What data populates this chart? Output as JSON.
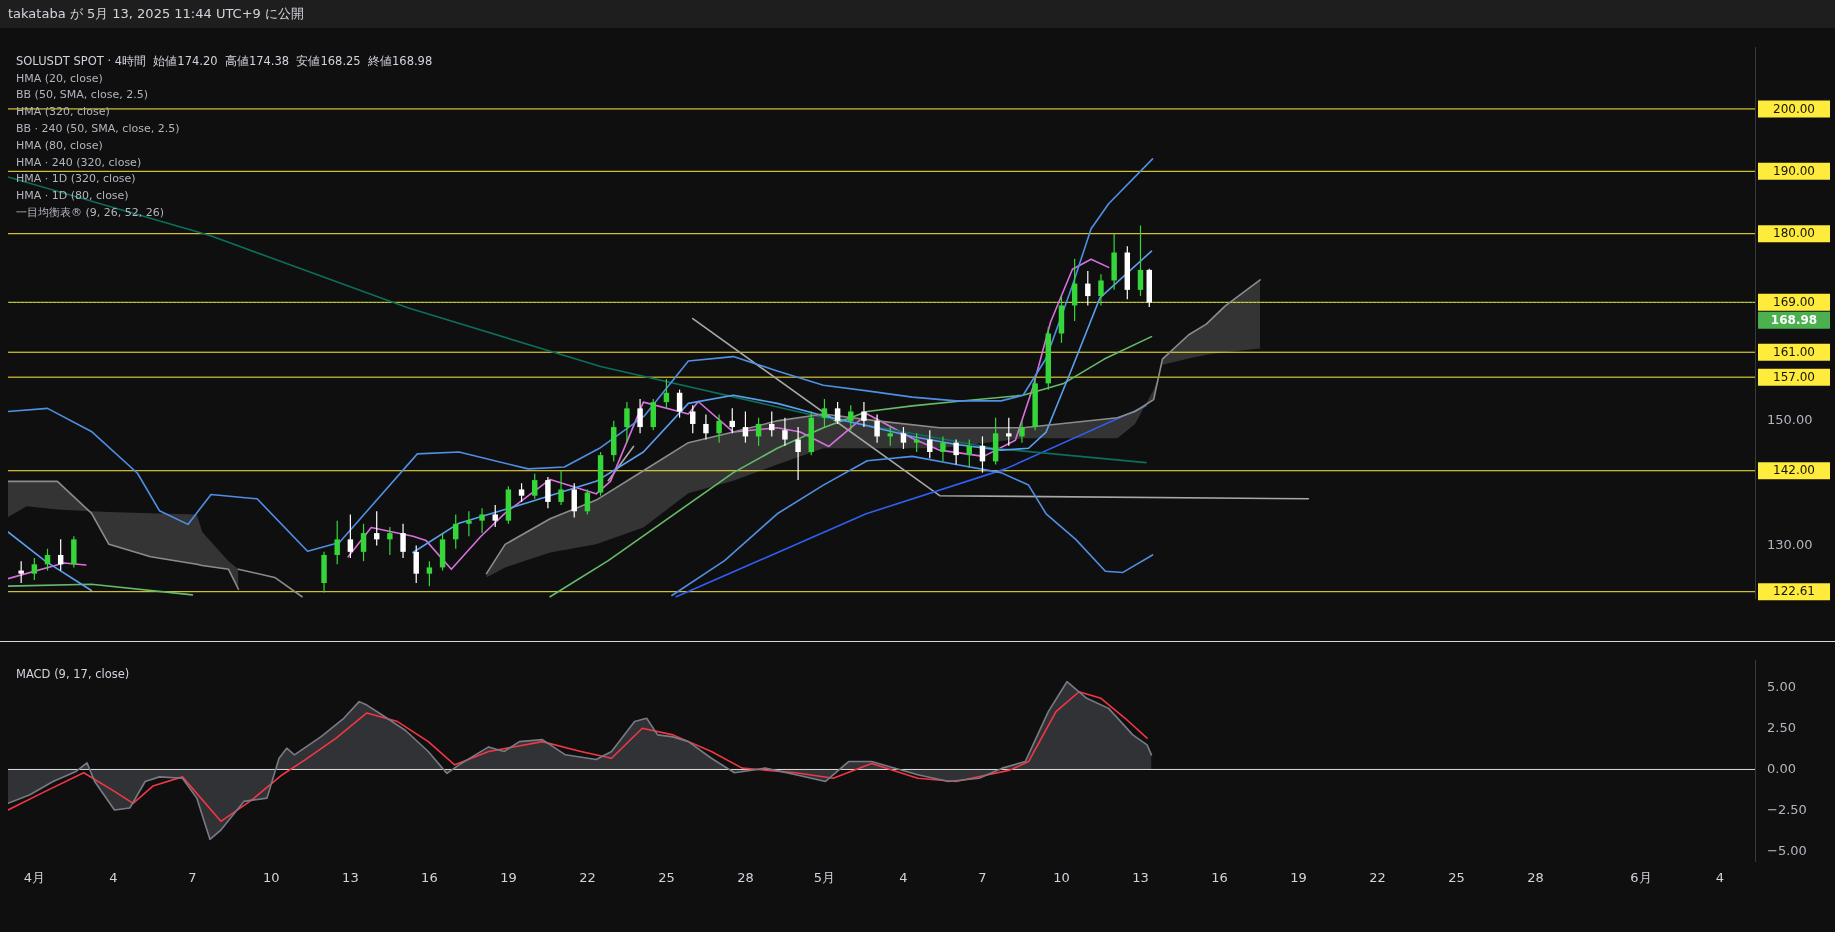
{
  "chart_data": [
    {
      "type": "candlestick",
      "title": "takataba が 5月 13, 2025 11:44 UTC+9 に公開",
      "subtitle": "SOLUSDT SPOT · 4時間  始値174.20  高値174.38  安値168.25  終値168.98",
      "annotations": [
        "HMA (20, close)",
        "BB (50, SMA, close, 2.5)",
        "HMA (320, close)",
        "BB · 240 (50, SMA, close, 2.5)",
        "HMA (80, close)",
        "HMA · 240 (320, close)",
        "HMA · 1D (320, close)",
        "HMA · 1D (80, close)",
        "一目均衡表® (9, 26, 52, 26)"
      ],
      "x": [
        "2025-03-31T12:00",
        "2025-04-01T00:00",
        "2025-04-01T12:00",
        "2025-04-02T00:00",
        "2025-04-02T12:00",
        "2025-04-12T00:00",
        "2025-04-12T12:00",
        "2025-04-13T00:00",
        "2025-04-13T12:00",
        "2025-04-14T00:00",
        "2025-04-14T12:00",
        "2025-04-15T00:00",
        "2025-04-15T12:00",
        "2025-04-16T00:00",
        "2025-04-16T12:00",
        "2025-04-17T00:00",
        "2025-04-17T12:00",
        "2025-04-18T00:00",
        "2025-04-18T12:00",
        "2025-04-19T00:00",
        "2025-04-19T12:00",
        "2025-04-20T00:00",
        "2025-04-20T12:00",
        "2025-04-21T00:00",
        "2025-04-21T12:00",
        "2025-04-22T00:00",
        "2025-04-22T12:00",
        "2025-04-23T00:00",
        "2025-04-23T12:00",
        "2025-04-24T00:00",
        "2025-04-24T12:00",
        "2025-04-25T00:00",
        "2025-04-25T12:00",
        "2025-04-26T00:00",
        "2025-04-26T12:00",
        "2025-04-27T00:00",
        "2025-04-27T12:00",
        "2025-04-28T00:00",
        "2025-04-28T12:00",
        "2025-04-29T00:00",
        "2025-04-29T12:00",
        "2025-04-30T00:00",
        "2025-04-30T12:00",
        "2025-05-01T00:00",
        "2025-05-01T12:00",
        "2025-05-02T00:00",
        "2025-05-02T12:00",
        "2025-05-03T00:00",
        "2025-05-03T12:00",
        "2025-05-04T00:00",
        "2025-05-04T12:00",
        "2025-05-05T00:00",
        "2025-05-05T12:00",
        "2025-05-06T00:00",
        "2025-05-06T12:00",
        "2025-05-07T00:00",
        "2025-05-07T12:00",
        "2025-05-08T00:00",
        "2025-05-08T12:00",
        "2025-05-09T00:00",
        "2025-05-09T12:00",
        "2025-05-10T00:00",
        "2025-05-10T12:00",
        "2025-05-11T00:00",
        "2025-05-11T12:00",
        "2025-05-12T00:00",
        "2025-05-12T12:00",
        "2025-05-13T00:00",
        "2025-05-13T08:00"
      ],
      "ohlc": [
        [
          126,
          127.5,
          124,
          125.5
        ],
        [
          125.5,
          128,
          124.5,
          127
        ],
        [
          127,
          129.5,
          126,
          128.5
        ],
        [
          128.5,
          131,
          126,
          127
        ],
        [
          127,
          131.5,
          126.5,
          131
        ],
        [
          124,
          129,
          122.5,
          128.5
        ],
        [
          128.5,
          134,
          127,
          131
        ],
        [
          131,
          135,
          128,
          129
        ],
        [
          129,
          133.5,
          127.5,
          132
        ],
        [
          132,
          135.5,
          130,
          131
        ],
        [
          131,
          133,
          128.5,
          132
        ],
        [
          132,
          133.5,
          128,
          129
        ],
        [
          129,
          130,
          124,
          125.5
        ],
        [
          125.5,
          127.5,
          123.5,
          126.5
        ],
        [
          126.5,
          132,
          126,
          131
        ],
        [
          131,
          135,
          129.5,
          133.5
        ],
        [
          133.5,
          135.5,
          131.5,
          134
        ],
        [
          134,
          136,
          132,
          135
        ],
        [
          135,
          136.5,
          133,
          134
        ],
        [
          134,
          139.5,
          133.5,
          139
        ],
        [
          139,
          140,
          137,
          138
        ],
        [
          138,
          141.5,
          137.5,
          140.5
        ],
        [
          140.5,
          141,
          136,
          137
        ],
        [
          137,
          142,
          136.5,
          139
        ],
        [
          139,
          140,
          134.5,
          135.5
        ],
        [
          135.5,
          139,
          135,
          138.5
        ],
        [
          138.5,
          145,
          138,
          144.5
        ],
        [
          144.5,
          150,
          143.5,
          149
        ],
        [
          149,
          153,
          146.5,
          152
        ],
        [
          152,
          153.5,
          148,
          149
        ],
        [
          149,
          153.5,
          148.5,
          153
        ],
        [
          153,
          156.7,
          152,
          154.5
        ],
        [
          154.5,
          155,
          150.5,
          151.5
        ],
        [
          151.5,
          152.5,
          148,
          149.5
        ],
        [
          149.5,
          151,
          147,
          148
        ],
        [
          148,
          151,
          146.5,
          150
        ],
        [
          150,
          152,
          148,
          149
        ],
        [
          149,
          151.5,
          146.5,
          147.5
        ],
        [
          147.5,
          150.5,
          146,
          149.5
        ],
        [
          149.5,
          151.5,
          147.5,
          148.5
        ],
        [
          148.5,
          150.5,
          146,
          147
        ],
        [
          147,
          149,
          140.5,
          145
        ],
        [
          145,
          151.5,
          144.5,
          150.5
        ],
        [
          150.5,
          153.5,
          149,
          152
        ],
        [
          152,
          153,
          149.5,
          150
        ],
        [
          150,
          152.5,
          148.5,
          151.5
        ],
        [
          151.5,
          153,
          149,
          150
        ],
        [
          150,
          151,
          146.5,
          147.5
        ],
        [
          147.5,
          149,
          146,
          148
        ],
        [
          148,
          149,
          145.5,
          146.5
        ],
        [
          146.5,
          148,
          145,
          147
        ],
        [
          147,
          148.5,
          144,
          145
        ],
        [
          145,
          147.5,
          143.5,
          146.5
        ],
        [
          146.5,
          147,
          143,
          144.5
        ],
        [
          144.5,
          147,
          142.5,
          146
        ],
        [
          146,
          147.5,
          141.7,
          143.5
        ],
        [
          143.5,
          150.5,
          143,
          148
        ],
        [
          148,
          150.5,
          146,
          147.5
        ],
        [
          147.5,
          150,
          146.5,
          149
        ],
        [
          149,
          157,
          148.5,
          156
        ],
        [
          156,
          165,
          155,
          164
        ],
        [
          164,
          170,
          162.5,
          168.5
        ],
        [
          168.5,
          176,
          166,
          172
        ],
        [
          172,
          174,
          168.5,
          170
        ],
        [
          170,
          173.5,
          168.5,
          172.5
        ],
        [
          172.5,
          180,
          171,
          177
        ],
        [
          177,
          178,
          169.5,
          171
        ],
        [
          171,
          181.3,
          170,
          174.2
        ],
        [
          174.2,
          174.38,
          168.25,
          168.98
        ]
      ],
      "colors": [
        "#ffffff",
        "#36d63a",
        "#36d63a",
        "#ffffff",
        "#36d63a",
        "#36d63a",
        "#36d63a",
        "#ffffff",
        "#36d63a",
        "#ffffff",
        "#36d63a",
        "#ffffff",
        "#ffffff",
        "#36d63a",
        "#36d63a",
        "#36d63a",
        "#36d63a",
        "#36d63a",
        "#ffffff",
        "#36d63a",
        "#ffffff",
        "#36d63a",
        "#ffffff",
        "#36d63a",
        "#ffffff",
        "#36d63a",
        "#36d63a",
        "#36d63a",
        "#36d63a",
        "#ffffff",
        "#36d63a",
        "#36d63a",
        "#ffffff",
        "#ffffff",
        "#ffffff",
        "#36d63a",
        "#ffffff",
        "#ffffff",
        "#36d63a",
        "#ffffff",
        "#ffffff",
        "#ffffff",
        "#36d63a",
        "#36d63a",
        "#ffffff",
        "#36d63a",
        "#ffffff",
        "#ffffff",
        "#36d63a",
        "#ffffff",
        "#36d63a",
        "#ffffff",
        "#36d63a",
        "#ffffff",
        "#36d63a",
        "#ffffff",
        "#36d63a",
        "#ffffff",
        "#36d63a",
        "#36d63a",
        "#36d63a",
        "#36d63a",
        "#36d63a",
        "#ffffff",
        "#36d63a",
        "#36d63a",
        "#ffffff",
        "#36d63a",
        "#ffffff"
      ],
      "series": [
        {
          "type": "line",
          "color": "#8c8c8c",
          "x": [
            "2025-03-31T00:00",
            "2025-03-31T17:00",
            "2025-04-01T21:00",
            "2025-04-03T04:00",
            "2025-04-03T20:00",
            "2025-04-05T10:00",
            "2025-04-07T04:00",
            "2025-04-07T09:00",
            "2025-04-08T09:00",
            "2025-04-08T18:00"
          ],
          "values": [
            140.3,
            140.3,
            140.3,
            135.2,
            130.2,
            128.2,
            127,
            126.8,
            126.2,
            123
          ],
          "upper": [
            140.3,
            140.3,
            140.3,
            135.2,
            130.2,
            128.2,
            127,
            126.8,
            126.2,
            123
          ],
          "lower": [
            134.6,
            136.3,
            135.8,
            135.5,
            135.4,
            135.2,
            135,
            132.2,
            127.5,
            126.2
          ]
        },
        {
          "type": "line",
          "color": "#8c8c8c",
          "x": [
            "2025-04-08T18:00",
            "2025-04-10T03:00",
            "2025-04-11T04:00"
          ],
          "values": [
            126.2,
            124.9,
            121.8
          ]
        },
        {
          "type": "line",
          "color": "#8c8c8c",
          "x": [
            "2025-04-18T04:00",
            "2025-04-18T21:00",
            "2025-04-20T14:00",
            "2025-04-22T08:00",
            "2025-04-24T03:00",
            "2025-04-25T20:00",
            "2025-04-27T13:00",
            "2025-04-29T05:00",
            "2025-04-30T23:00",
            "2025-05-03T00:00",
            "2025-05-05T09:00",
            "2025-05-08T13:00",
            "2025-05-12T03:00",
            "2025-05-12T19:00",
            "2025-05-13T12:00",
            "2025-05-13T20:00",
            "2025-05-14T20:00",
            "2025-05-15T12:00",
            "2025-05-16T05:00",
            "2025-05-17T13:00"
          ],
          "lower": [
            124.9,
            126.5,
            128.9,
            130.2,
            132.9,
            138.4,
            140.4,
            143,
            145.6,
            145.6,
            145.6,
            147.2,
            147.2,
            149.5,
            155,
            159,
            160,
            160.6,
            161,
            161.6
          ],
          "upper": [
            125.5,
            130.2,
            134.3,
            137.3,
            142,
            146.5,
            148.2,
            150,
            151.1,
            150,
            148.9,
            148.9,
            150.5,
            151.5,
            153.4,
            159.9,
            163.8,
            165.5,
            168.4,
            172.6
          ],
          "values": [
            125.5,
            130.2,
            134.3,
            137.3,
            142,
            146.5,
            148.2,
            150,
            151.1,
            150,
            148.9,
            148.9,
            150.5,
            151.5,
            153.4,
            159.9,
            163.8,
            165.5,
            168.4,
            172.6
          ]
        },
        {
          "type": "line",
          "color": "#4f8fe6",
          "x": [
            "2025-03-31T00:00",
            "2025-04-01T12:00",
            "2025-04-03T04:00",
            "2025-04-04T22:00",
            "2025-04-05T18:00",
            "2025-04-06T20:00",
            "2025-04-07T17:00",
            "2025-04-09T11:00",
            "2025-04-11T09:00",
            "2025-04-12T14:00",
            "2025-04-15T13:00",
            "2025-04-17T03:00",
            "2025-04-19T18:00",
            "2025-04-21T03:00",
            "2025-04-22T11:00",
            "2025-04-24T04:00",
            "2025-04-25T20:00",
            "2025-04-27T13:00",
            "2025-04-29T05:00",
            "2025-04-30T23:00",
            "2025-05-02T15:00",
            "2025-05-04T08:00",
            "2025-05-06T00:00",
            "2025-05-07T17:00",
            "2025-05-08T13:00",
            "2025-05-09T10:00",
            "2025-05-10T10:00",
            "2025-05-11T03:00",
            "2025-05-11T19:00",
            "2025-05-13T11:00"
          ],
          "values": [
            151.5,
            152,
            148.3,
            141.6,
            135.6,
            133.4,
            138.2,
            137.5,
            129.1,
            130.5,
            144.7,
            145,
            142.3,
            142.6,
            145.6,
            150.8,
            159.6,
            160.3,
            158,
            155.7,
            154.8,
            153.8,
            153.2,
            153.2,
            154.1,
            160,
            171.7,
            180.8,
            184.8,
            192
          ]
        },
        {
          "type": "line",
          "color": "#4f8fe6",
          "x": [
            "2025-04-25T05:00",
            "2025-04-27T05:00",
            "2025-04-29T05:00",
            "2025-04-30T23:00",
            "2025-05-02T15:00",
            "2025-05-04T08:00",
            "2025-05-06T00:00",
            "2025-05-07T17:00",
            "2025-05-08T18:00",
            "2025-05-09T10:00",
            "2025-05-10T13:00",
            "2025-05-11T16:00",
            "2025-05-12T08:00",
            "2025-05-13T11:00"
          ],
          "values": [
            122,
            127.6,
            135.1,
            139.7,
            143.6,
            144.3,
            143,
            141.7,
            139.7,
            135.1,
            131,
            125.9,
            125.7,
            128.5
          ]
        },
        {
          "type": "line",
          "color": "#5aa0f2",
          "x": [
            "2025-03-31T00:00",
            "2025-04-01T10:00",
            "2025-04-03T04:00",
            "2025-04-09T00:00",
            "2025-04-15T09:00",
            "2025-04-17T03:00",
            "2025-04-19T18:00",
            "2025-04-22T08:00",
            "2025-04-24T03:00",
            "2025-04-25T20:00",
            "2025-04-27T13:00",
            "2025-04-29T05:00",
            "2025-04-30T23:00",
            "2025-05-02T15:00",
            "2025-05-04T08:00",
            "2025-05-06T00:00",
            "2025-05-07T17:00",
            "2025-05-08T18:00",
            "2025-05-09T10:00",
            "2025-05-10T10:00",
            "2025-05-11T11:00",
            "2025-05-13T10:00"
          ],
          "values": [
            132.2,
            127.5,
            122.8,
            null,
            128.9,
            133.6,
            136.9,
            140.3,
            145,
            152.8,
            154.1,
            152.8,
            150.8,
            149.2,
            147.5,
            146.2,
            145.3,
            145.6,
            148.2,
            158.6,
            169.7,
            177.2
          ]
        },
        {
          "type": "line",
          "color": "#66bb6a",
          "x": [
            "2025-03-31T00:00",
            "2025-04-03T04:00",
            "2025-04-07T00:00",
            "2025-04-14T00:00",
            "2025-04-20T14:00",
            "2025-04-22T19:00",
            "2025-04-27T13:00",
            "2025-04-29T05:00",
            "2025-04-30T23:00",
            "2025-05-02T15:00",
            "2025-05-04T08:00",
            "2025-05-06T00:00",
            "2025-05-08T13:00",
            "2025-05-10T02:00",
            "2025-05-11T15:00",
            "2025-05-13T10:00"
          ],
          "values": [
            123.5,
            123.8,
            122.1,
            null,
            121.8,
            127.6,
            141.7,
            145.6,
            148.9,
            151.5,
            152.4,
            153.1,
            154.1,
            156,
            159.9,
            163.5
          ]
        },
        {
          "type": "line",
          "color": "#0d6e5c",
          "x": [
            "2025-03-31T00:00",
            "2025-04-07T16:00",
            "2025-04-15T05:00",
            "2025-04-22T12:00",
            "2025-04-30T19:00",
            "2025-05-07T10:00",
            "2025-05-13T05:00"
          ],
          "values": [
            189.1,
            179.7,
            168.1,
            158.7,
            150.7,
            145.6,
            143.3
          ]
        },
        {
          "type": "line",
          "color": "#2f5ff5",
          "x": [
            "2025-04-25T09:00",
            "2025-05-02T14:00",
            "2025-05-07T21:00",
            "2025-05-13T05:00"
          ],
          "values": [
            121.8,
            135.1,
            142.3,
            152.4
          ]
        },
        {
          "type": "line",
          "color": "#da6fe0",
          "x": [
            "2025-03-31T00:00",
            "2025-04-02T03:00",
            "2025-04-02T23:00",
            "2025-04-07T00:00",
            "2025-04-12T22:00",
            "2025-04-13T19:00",
            "2025-04-15T09:00",
            "2025-04-15T21:00",
            "2025-04-16T20:00",
            "2025-04-17T23:00",
            "2025-04-18T21:00",
            "2025-04-20T14:00",
            "2025-04-22T08:00",
            "2025-04-22T21:00",
            "2025-04-24T03:00",
            "2025-04-25T20:00",
            "2025-04-26T05:00",
            "2025-04-27T13:00",
            "2025-04-29T05:00",
            "2025-04-30T02:00",
            "2025-05-01T04:00",
            "2025-05-02T15:00",
            "2025-05-04T08:00",
            "2025-05-05T09:00",
            "2025-05-07T01:00",
            "2025-05-08T06:00",
            "2025-05-08T22:00",
            "2025-05-09T14:00",
            "2025-05-10T10:00",
            "2025-05-11T03:00",
            "2025-05-11T19:00"
          ],
          "values": [
            124.7,
            127.2,
            126.9,
            null,
            128.2,
            132.9,
            131.5,
            130.8,
            126.2,
            131.5,
            135.2,
            140.6,
            138.3,
            140.3,
            153,
            151.1,
            153.1,
            148.2,
            148.9,
            148.2,
            145.9,
            151.1,
            147.2,
            145.3,
            144.3,
            146.9,
            155.4,
            165.8,
            174.3,
            175.9,
            174.6
          ]
        },
        {
          "type": "line",
          "color": "#a8a8a8",
          "x": [
            "2025-04-26T00:00",
            "2025-05-05T09:00",
            "2025-05-19T09:00"
          ],
          "values": [
            166.4,
            138,
            137.5
          ]
        },
        {
          "type": "line",
          "color": "#a8a8a8",
          "x": [
            "2025-04-22T19:00",
            "2025-04-23T18:00"
          ],
          "values": [
            140.4,
            145.9
          ]
        }
      ],
      "xlim": [
        "2025-03-31T00:00",
        "2025-06-05T08:00"
      ],
      "ylim": [
        121.6,
        209.8
      ],
      "yticks": [
        {
          "value": 130,
          "label": "130.00"
        },
        {
          "value": 150,
          "label": "150.00"
        }
      ],
      "ref_lines": [
        {
          "axis": "y",
          "value": 200,
          "label": "200.00",
          "color": "#ffeb3b"
        },
        {
          "axis": "y",
          "value": 190,
          "label": "190.00",
          "color": "#ffeb3b"
        },
        {
          "axis": "y",
          "value": 180,
          "label": "180.00",
          "color": "#ffeb3b"
        },
        {
          "axis": "y",
          "value": 169,
          "label": "169.00",
          "color": "#ffeb3b"
        },
        {
          "axis": "y",
          "value": 168.98,
          "label": "168.98",
          "color": "#4caf50",
          "line_style": "dotted"
        },
        {
          "axis": "y",
          "value": 161,
          "label": "161.00",
          "color": "#ffeb3b"
        },
        {
          "axis": "y",
          "value": 157,
          "label": "157.00",
          "color": "#ffeb3b"
        },
        {
          "axis": "y",
          "value": 142,
          "label": "142.00",
          "color": "#ffeb3b"
        },
        {
          "axis": "y",
          "value": 122.61,
          "label": "122.61",
          "color": "#ffeb3b"
        }
      ],
      "tick_labels": "y",
      "marker": "none",
      "legend": false
    },
    {
      "type": "line",
      "subtitle": "MACD (9, 17, close)",
      "series": [
        {
          "type": "area",
          "color": "#787b86",
          "x": [
            "2025-03-31T00:00",
            "2025-03-31T20:00",
            "2025-04-01T17:00",
            "2025-04-02T14:00",
            "2025-04-03T00:00",
            "2025-04-03T07:00",
            "2025-04-04T01:00",
            "2025-04-04T15:00",
            "2025-04-05T05:00",
            "2025-04-05T18:00",
            "2025-04-06T15:00",
            "2025-04-07T04:00",
            "2025-04-07T16:00",
            "2025-04-08T02:00",
            "2025-04-08T23:00",
            "2025-04-09T20:00",
            "2025-04-10T07:00",
            "2025-04-10T14:00",
            "2025-04-10T21:00",
            "2025-04-11T21:00",
            "2025-04-12T18:00",
            "2025-04-13T08:00",
            "2025-04-13T15:00",
            "2025-04-14T05:00",
            "2025-04-15T02:00",
            "2025-04-15T23:00",
            "2025-04-16T16:00",
            "2025-04-17T03:00",
            "2025-04-18T06:00",
            "2025-04-18T20:00",
            "2025-04-19T10:00",
            "2025-04-20T07:00",
            "2025-04-21T04:00",
            "2025-04-22T08:00",
            "2025-04-22T22:00",
            "2025-04-23T19:00",
            "2025-04-24T06:00",
            "2025-04-24T16:00",
            "2025-04-25T06:00",
            "2025-04-25T20:00",
            "2025-04-26T17:00",
            "2025-04-27T14:00",
            "2025-04-28T18:00",
            "2025-04-29T22:00",
            "2025-05-01T01:00",
            "2025-05-01T22:00",
            "2025-05-02T19:00",
            "2025-05-04T13:00",
            "2025-05-05T17:00",
            "2025-05-06T21:00",
            "2025-05-07T18:00",
            "2025-05-08T15:00",
            "2025-05-09T12:00",
            "2025-05-10T05:00",
            "2025-05-10T23:00",
            "2025-05-11T19:00",
            "2025-05-12T17:00",
            "2025-05-13T06:00",
            "2025-05-13T10:00"
          ],
          "values": [
            -2.06,
            -1.54,
            -0.73,
            -0.12,
            0.4,
            -0.73,
            -2.46,
            -2.34,
            -0.73,
            -0.45,
            -0.53,
            -1.74,
            -4.24,
            -3.68,
            -1.94,
            -1.74,
            0.68,
            1.29,
            0.89,
            1.98,
            3.11,
            4.12,
            3.91,
            3.31,
            2.38,
            1.09,
            -0.24,
            0.28,
            1.37,
            1.09,
            1.69,
            1.81,
            0.89,
            0.6,
            1.09,
            2.91,
            3.11,
            2.1,
            1.98,
            1.69,
            0.68,
            -0.2,
            0.08,
            -0.32,
            -0.73,
            0.48,
            0.48,
            -0.32,
            -0.73,
            -0.53,
            0.08,
            0.48,
            3.51,
            5.33,
            4.32,
            3.71,
            2.1,
            1.49,
            0.89
          ]
        },
        {
          "type": "line",
          "color": "#f23645",
          "x": [
            "2025-03-31T00:00",
            "2025-04-01T10:00",
            "2025-04-02T21:00",
            "2025-04-04T01:00",
            "2025-04-04T18:00",
            "2025-04-05T12:00",
            "2025-04-06T15:00",
            "2025-04-08T02:00",
            "2025-04-09T06:00",
            "2025-04-10T10:00",
            "2025-04-11T07:00",
            "2025-04-12T11:00",
            "2025-04-13T15:00",
            "2025-04-14T19:00",
            "2025-04-15T23:00",
            "2025-04-16T23:00",
            "2025-04-18T06:00",
            "2025-04-20T07:00",
            "2025-04-21T18:00",
            "2025-04-22T22:00",
            "2025-04-24T02:00",
            "2025-04-25T06:00",
            "2025-04-26T17:00",
            "2025-04-27T21:00",
            "2025-04-29T22:00",
            "2025-05-01T08:00",
            "2025-05-02T19:00",
            "2025-05-04T13:00",
            "2025-05-06T00:00",
            "2025-05-08T01:00",
            "2025-05-08T18:00",
            "2025-05-09T19:00",
            "2025-05-10T16:00",
            "2025-05-11T12:00",
            "2025-05-12T10:00",
            "2025-05-13T06:00"
          ],
          "values": [
            -2.46,
            -1.33,
            -0.2,
            -1.33,
            -2.06,
            -1.01,
            -0.45,
            -3.15,
            -1.86,
            -0.32,
            0.6,
            1.9,
            3.43,
            2.91,
            1.69,
            0.28,
            1.09,
            1.69,
            1.09,
            0.68,
            2.5,
            2.1,
            1.09,
            0.08,
            -0.2,
            -0.53,
            0.36,
            -0.53,
            -0.73,
            -0.04,
            0.48,
            3.51,
            4.72,
            4.32,
            3.11,
            1.9
          ]
        }
      ],
      "xlim": [
        "2025-03-31T00:00",
        "2025-06-05T08:00"
      ],
      "xticks": [
        {
          "value": "2025-04-01",
          "label": "4月"
        },
        {
          "value": "2025-04-04",
          "label": "4"
        },
        {
          "value": "2025-04-07",
          "label": "7"
        },
        {
          "value": "2025-04-10",
          "label": "10"
        },
        {
          "value": "2025-04-13",
          "label": "13"
        },
        {
          "value": "2025-04-16",
          "label": "16"
        },
        {
          "value": "2025-04-19",
          "label": "19"
        },
        {
          "value": "2025-04-22",
          "label": "22"
        },
        {
          "value": "2025-04-25",
          "label": "25"
        },
        {
          "value": "2025-04-28",
          "label": "28"
        },
        {
          "value": "2025-05-01",
          "label": "5月"
        },
        {
          "value": "2025-05-04",
          "label": "4"
        },
        {
          "value": "2025-05-07",
          "label": "7"
        },
        {
          "value": "2025-05-10",
          "label": "10"
        },
        {
          "value": "2025-05-13",
          "label": "13"
        },
        {
          "value": "2025-05-16",
          "label": "16"
        },
        {
          "value": "2025-05-19",
          "label": "19"
        },
        {
          "value": "2025-05-22",
          "label": "22"
        },
        {
          "value": "2025-05-25",
          "label": "25"
        },
        {
          "value": "2025-05-28",
          "label": "28"
        },
        {
          "value": "2025-06-01",
          "label": "6月"
        },
        {
          "value": "2025-06-04",
          "label": "4"
        }
      ],
      "ylim": [
        -5.56,
        6.6
      ],
      "yticks": [
        {
          "value": 5,
          "label": "5.00"
        },
        {
          "value": 2.5,
          "label": "2.50"
        },
        {
          "value": 0,
          "label": "0.00"
        },
        {
          "value": -2.5,
          "label": "−2.50"
        },
        {
          "value": -5,
          "label": "−5.00"
        }
      ],
      "ref_lines": [
        {
          "axis": "y",
          "value": 0,
          "color": "#e0e0e0"
        }
      ],
      "marker": "none",
      "legend": false
    }
  ]
}
